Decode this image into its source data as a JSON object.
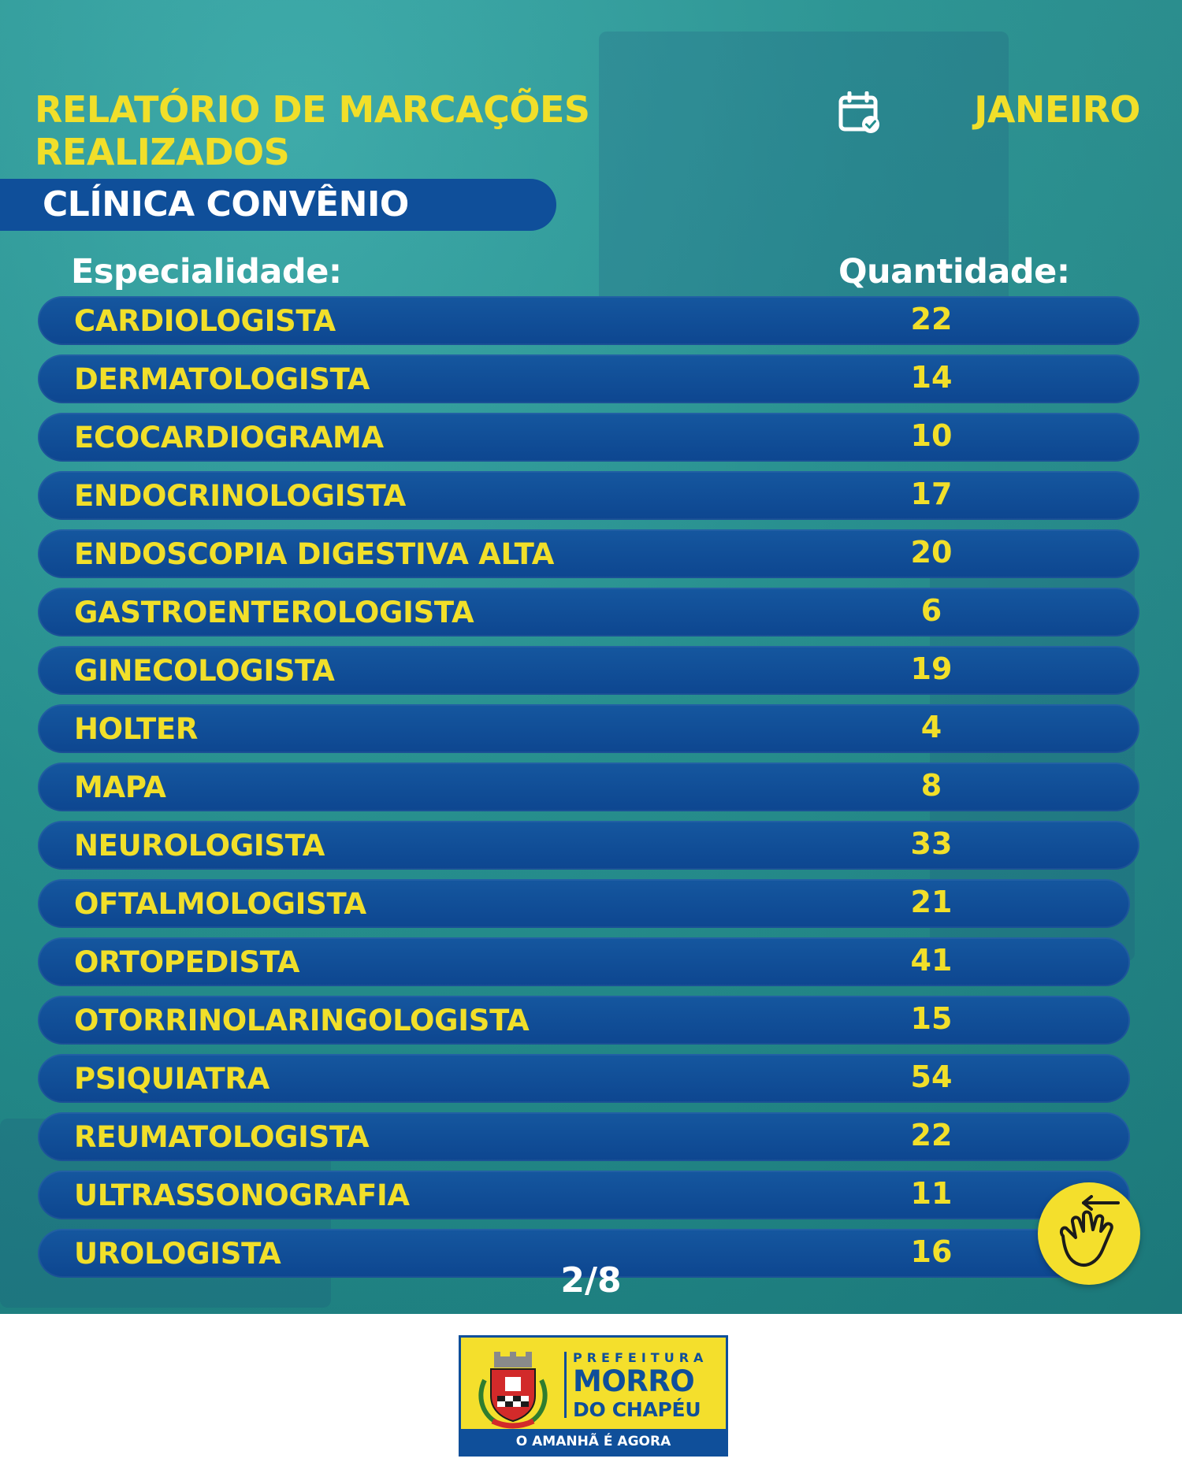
{
  "header": {
    "title_line1": "RELATÓRIO DE MARCAÇÕES",
    "title_line2": "REALIZADOS",
    "month": "JANEIRO",
    "calendar_icon": "calendar-check-icon"
  },
  "section": {
    "label": "CLÍNICA CONVÊNIO"
  },
  "table": {
    "col_specialty": "Especialidade:",
    "col_quantity": "Quantidade:",
    "rows": [
      {
        "label": "CARDIOLOGISTA",
        "qty": "22"
      },
      {
        "label": "DERMATOLOGISTA",
        "qty": "14"
      },
      {
        "label": "ECOCARDIOGRAMA",
        "qty": "10"
      },
      {
        "label": "ENDOCRINOLOGISTA",
        "qty": "17"
      },
      {
        "label": "ENDOSCOPIA DIGESTIVA ALTA",
        "qty": "20"
      },
      {
        "label": "GASTROENTEROLOGISTA",
        "qty": "6"
      },
      {
        "label": "GINECOLOGISTA",
        "qty": "19"
      },
      {
        "label": "HOLTER",
        "qty": "4"
      },
      {
        "label": "MAPA",
        "qty": "8"
      },
      {
        "label": "NEUROLOGISTA",
        "qty": "33"
      },
      {
        "label": "OFTALMOLOGISTA",
        "qty": "21"
      },
      {
        "label": "ORTOPEDISTA",
        "qty": "41"
      },
      {
        "label": "OTORRINOLARINGOLOGISTA",
        "qty": "15"
      },
      {
        "label": "PSIQUIATRA",
        "qty": "54"
      },
      {
        "label": "REUMATOLOGISTA",
        "qty": "22"
      },
      {
        "label": "ULTRASSONOGRAFIA",
        "qty": "11"
      },
      {
        "label": "UROLOGISTA",
        "qty": "16"
      }
    ]
  },
  "pager": {
    "text": "2/8",
    "swipe_icon": "swipe-hand-icon"
  },
  "footer": {
    "logo": {
      "prefeitura": "PREFEITURA",
      "line1": "MORRO",
      "line2": "DO CHAPÉU",
      "tagline": "O AMANHÃ É AGORA",
      "crest_icon": "municipal-crest-icon"
    }
  },
  "colors": {
    "background_teal": "#23908f",
    "row_blue": "#0f4f9a",
    "accent_yellow": "#f1df2a",
    "white": "#ffffff"
  }
}
